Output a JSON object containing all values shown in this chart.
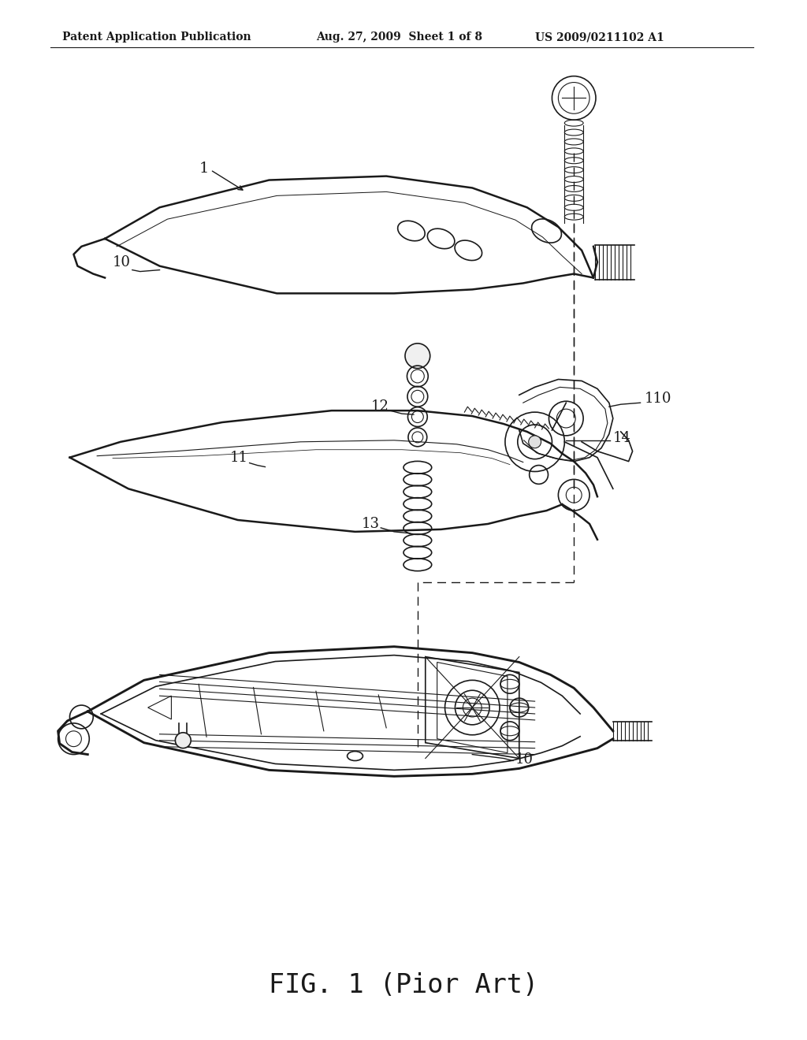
{
  "bg_color": "#ffffff",
  "line_color": "#1a1a1a",
  "header_left": "Patent Application Publication",
  "header_center": "Aug. 27, 2009  Sheet 1 of 8",
  "header_right": "US 2009/0211102 A1",
  "caption": "FIG. 1 (Pior Art)"
}
